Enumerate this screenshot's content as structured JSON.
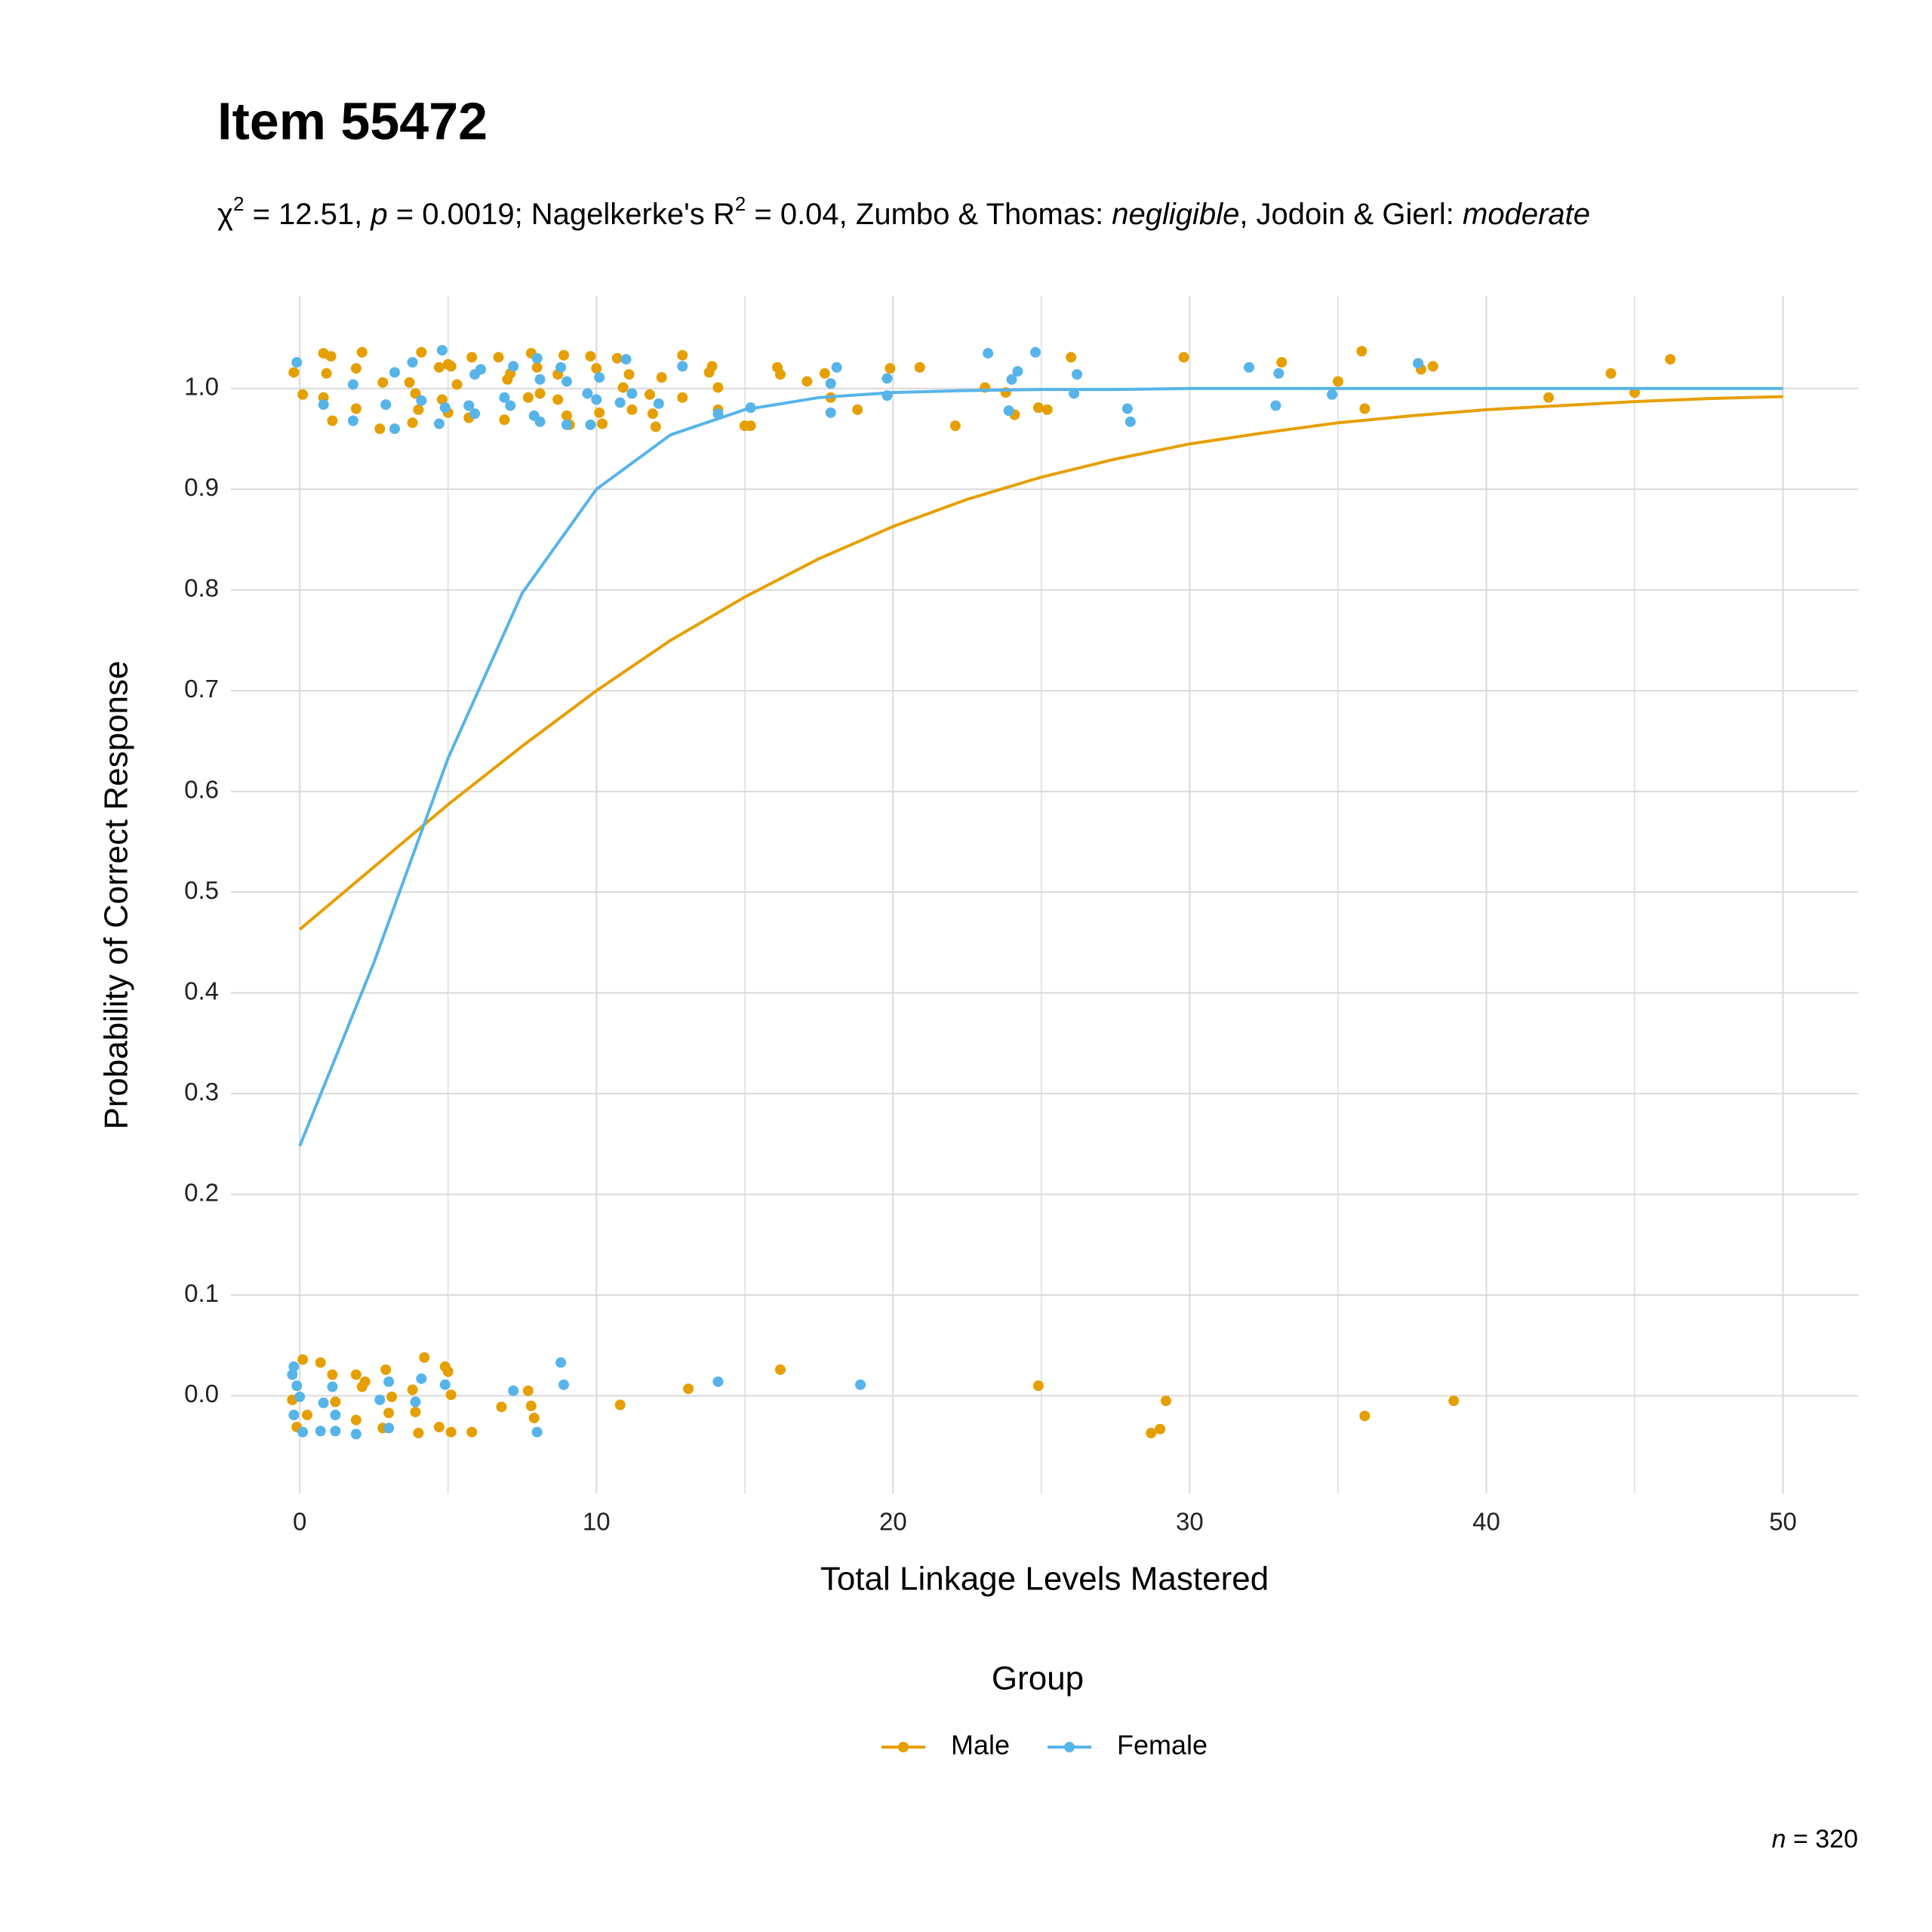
{
  "chart_data": {
    "type": "scatter",
    "title": "Item 55472",
    "subtitle": [
      "χ",
      "2",
      " = 12.51, ",
      "p",
      " = 0.0019; Nagelkerke's R",
      "2",
      " = 0.04, Zumbo & Thomas: ",
      "negligible",
      ", Jodoin & Gierl: ",
      "moderate"
    ],
    "x_label": "Total Linkage Levels Mastered",
    "y_label": "Probability of Correct Response",
    "legend_title": "Group",
    "legend_position": "bottom",
    "caption": [
      "n",
      " = 320"
    ],
    "xlim": [
      -2.32,
      52.53
    ],
    "ylim": [
      -0.097,
      1.092
    ],
    "xticks": [
      0,
      10,
      20,
      30,
      40,
      50
    ],
    "x_minor_ticks": [
      5,
      15,
      25,
      35,
      45
    ],
    "yticks": [
      {
        "value": 0,
        "label": "0.0"
      },
      0.1,
      0.2,
      0.3,
      0.4,
      0.5,
      0.6,
      0.7,
      0.8,
      0.9,
      {
        "value": 1,
        "label": "1.0"
      }
    ],
    "grid": true,
    "fit_x": [
      0,
      2.5,
      5,
      7.5,
      10,
      12.5,
      15,
      17.5,
      20,
      22.5,
      25,
      27.5,
      30,
      32.5,
      35,
      37.5,
      40,
      42.5,
      45,
      47.5,
      50
    ],
    "series": [
      {
        "name": "Male",
        "color": "#E69F00",
        "fit_values": [
          0.463,
          0.525,
          0.587,
          0.645,
          0.7,
          0.75,
          0.793,
          0.831,
          0.863,
          0.89,
          0.912,
          0.93,
          0.945,
          0.956,
          0.966,
          0.973,
          0.979,
          0.983,
          0.987,
          0.99,
          0.992
        ],
        "x": [
          -0.2,
          0.1,
          0.8,
          1.05,
          0.9,
          1.1,
          0.8,
          1.9,
          2.1,
          1.9,
          2.7,
          2.8,
          3.7,
          3.8,
          4.1,
          3.9,
          4.0,
          4.7,
          5.0,
          5.1,
          4.8,
          5.0,
          5.3,
          5.7,
          5.8,
          5.7,
          6.1,
          6.7,
          6.9,
          7.0,
          7.1,
          7.8,
          8.0,
          7.7,
          8.1,
          8.7,
          8.9,
          8.7,
          9.0,
          9.1,
          9.8,
          10.0,
          10.1,
          10.2,
          10.7,
          10.9,
          11.1,
          11.2,
          11.8,
          11.9,
          12.0,
          12.2,
          12.9,
          12.9,
          13.8,
          13.9,
          14.1,
          14.1,
          15.0,
          15.2,
          16.1,
          16.2,
          17.1,
          17.7,
          17.9,
          18.8,
          19.9,
          20.9,
          22.1,
          23.1,
          23.8,
          24.1,
          24.9,
          25.2,
          26.0,
          29.8,
          33.1,
          35.0,
          35.8,
          35.9,
          37.8,
          38.2,
          42.1,
          44.2,
          45.0,
          46.2,
          -0.25,
          -0.1,
          0.1,
          0.25,
          0.7,
          1.1,
          1.2,
          1.9,
          2.2,
          2.1,
          1.9,
          2.9,
          3.0,
          2.8,
          3.1,
          3.8,
          4.2,
          4.0,
          3.9,
          4.7,
          4.9,
          5.0,
          5.1,
          5.1,
          5.8,
          6.8,
          7.7,
          7.8,
          7.9,
          10.8,
          13.1,
          16.2,
          24.9,
          28.7,
          29.0,
          29.2,
          35.9,
          38.9
        ],
        "values": [
          1.016,
          0.994,
          1.035,
          1.032,
          1.015,
          0.968,
          0.991,
          1.02,
          1.036,
          0.98,
          0.96,
          1.006,
          1.006,
          0.966,
          1.036,
          0.995,
          0.979,
          1.021,
          1.024,
          1.022,
          0.989,
          0.976,
          1.004,
          0.983,
          1.031,
          0.971,
          1.019,
          1.031,
          0.969,
          1.009,
          1.015,
          1.035,
          1.021,
          0.991,
          0.995,
          1.014,
          1.033,
          0.989,
          0.973,
          0.964,
          1.032,
          1.02,
          0.976,
          0.965,
          1.03,
          1.001,
          1.014,
          0.979,
          0.994,
          0.975,
          0.962,
          1.011,
          1.033,
          0.991,
          1.016,
          1.022,
          1.001,
          0.979,
          0.963,
          0.963,
          1.021,
          1.014,
          1.007,
          1.015,
          0.991,
          0.979,
          1.02,
          1.021,
          0.963,
          1.001,
          0.996,
          0.974,
          0.981,
          0.979,
          1.031,
          1.031,
          1.026,
          1.007,
          1.037,
          0.98,
          1.019,
          1.022,
          0.991,
          1.015,
          0.996,
          1.029,
          -0.004,
          -0.031,
          0.036,
          -0.019,
          0.033,
          0.021,
          -0.006,
          0.021,
          0.014,
          0.009,
          -0.024,
          0.026,
          -0.017,
          -0.032,
          -0.001,
          0.006,
          0.038,
          -0.037,
          -0.016,
          -0.031,
          0.029,
          0.024,
          0.001,
          -0.036,
          -0.036,
          -0.011,
          0.005,
          -0.01,
          -0.022,
          -0.009,
          0.007,
          0.026,
          0.01,
          -0.037,
          -0.033,
          -0.005,
          -0.02,
          -0.005
        ]
      },
      {
        "name": "Female",
        "color": "#56B4E9",
        "fit_values": [
          0.248,
          0.43,
          0.633,
          0.797,
          0.9,
          0.954,
          0.979,
          0.991,
          0.996,
          0.998,
          0.999,
          0.999,
          1.0,
          1.0,
          1.0,
          1.0,
          1.0,
          1.0,
          1.0,
          1.0,
          1.0
        ],
        "x": [
          -0.1,
          0.8,
          1.8,
          1.8,
          2.9,
          3.2,
          3.2,
          3.8,
          4.1,
          4.7,
          4.8,
          4.9,
          5.7,
          5.9,
          6.1,
          5.9,
          6.9,
          7.2,
          7.1,
          7.9,
          8.1,
          8.1,
          8.0,
          8.8,
          9.0,
          9.0,
          9.7,
          9.8,
          10.0,
          10.1,
          10.8,
          11.0,
          11.2,
          12.1,
          12.9,
          14.1,
          15.2,
          17.9,
          17.9,
          18.1,
          19.8,
          19.8,
          23.2,
          23.9,
          24.0,
          24.2,
          24.8,
          26.1,
          26.2,
          27.9,
          28.0,
          32.0,
          32.9,
          33.0,
          34.8,
          37.7,
          -0.25,
          -0.2,
          -0.1,
          -0.2,
          0.0,
          0.1,
          0.8,
          0.7,
          1.1,
          1.2,
          1.2,
          1.9,
          2.7,
          3.0,
          3.0,
          3.9,
          4.1,
          4.9,
          7.2,
          8.0,
          8.8,
          8.9,
          14.1,
          18.9
        ],
        "values": [
          1.026,
          0.984,
          0.968,
          1.004,
          0.984,
          0.96,
          1.016,
          1.026,
          0.988,
          0.965,
          1.038,
          0.981,
          0.983,
          1.014,
          1.019,
          0.975,
          0.991,
          1.022,
          0.983,
          0.973,
          1.009,
          0.967,
          1.03,
          1.021,
          1.007,
          0.964,
          0.995,
          0.964,
          0.989,
          1.011,
          0.986,
          1.029,
          0.995,
          0.985,
          1.022,
          0.975,
          0.981,
          0.976,
          1.005,
          1.021,
          0.993,
          1.01,
          1.035,
          0.978,
          1.009,
          1.017,
          1.036,
          0.995,
          1.014,
          0.98,
          0.967,
          1.021,
          0.983,
          1.015,
          0.994,
          1.025,
          0.021,
          0.029,
          0.01,
          -0.019,
          -0.001,
          -0.036,
          -0.007,
          -0.035,
          0.009,
          -0.019,
          -0.035,
          -0.038,
          -0.004,
          0.014,
          -0.032,
          -0.006,
          0.017,
          0.011,
          0.005,
          -0.036,
          0.033,
          0.011,
          0.014,
          0.011
        ]
      }
    ]
  }
}
